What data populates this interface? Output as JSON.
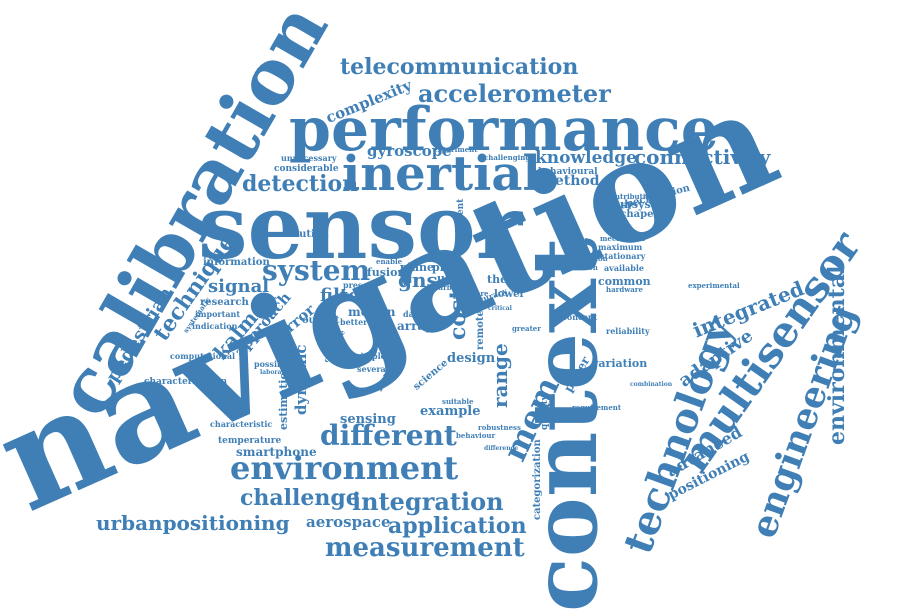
{
  "colors": {
    "word": "#3f7fb6",
    "background": "#ffffff"
  },
  "words": [
    {
      "text": "navigation",
      "orientation": "rotated"
    },
    {
      "text": "sensor",
      "orientation": "horizontal"
    },
    {
      "text": "calibration",
      "orientation": "rotated"
    },
    {
      "text": "context",
      "orientation": "vertical"
    },
    {
      "text": "performance",
      "orientation": "horizontal"
    },
    {
      "text": "inertial",
      "orientation": "horizontal"
    },
    {
      "text": "technology",
      "orientation": "rotated"
    },
    {
      "text": "multisensor",
      "orientation": "rotated"
    },
    {
      "text": "engineering",
      "orientation": "rotated"
    },
    {
      "text": "environment",
      "orientation": "horizontal"
    },
    {
      "text": "different",
      "orientation": "horizontal"
    },
    {
      "text": "telecommunication",
      "orientation": "horizontal"
    },
    {
      "text": "accelerometer",
      "orientation": "horizontal"
    },
    {
      "text": "connectivity",
      "orientation": "horizontal"
    },
    {
      "text": "integration",
      "orientation": "horizontal"
    },
    {
      "text": "measurement",
      "orientation": "horizontal"
    },
    {
      "text": "application",
      "orientation": "horizontal"
    },
    {
      "text": "challenge",
      "orientation": "horizontal"
    },
    {
      "text": "urbanpositioning",
      "orientation": "horizontal"
    },
    {
      "text": "aerospace",
      "orientation": "horizontal"
    },
    {
      "text": "environmental",
      "orientation": "vertical"
    },
    {
      "text": "system",
      "orientation": "horizontal"
    },
    {
      "text": "detection",
      "orientation": "horizontal"
    },
    {
      "text": "knowledge",
      "orientation": "horizontal"
    },
    {
      "text": "method",
      "orientation": "horizontal"
    },
    {
      "text": "gyroscope",
      "orientation": "horizontal"
    },
    {
      "text": "complexity",
      "orientation": "rotated"
    },
    {
      "text": "technique",
      "orientation": "rotated"
    },
    {
      "text": "pedestrian",
      "orientation": "rotated"
    },
    {
      "text": "kalman",
      "orientation": "rotated"
    },
    {
      "text": "integrated",
      "orientation": "rotated"
    },
    {
      "text": "adaptive",
      "orientation": "rotated"
    },
    {
      "text": "advanced",
      "orientation": "rotated"
    },
    {
      "text": "positioning",
      "orientation": "rotated"
    },
    {
      "text": "mem",
      "orientation": "rotated"
    },
    {
      "text": "cost",
      "orientation": "vertical"
    },
    {
      "text": "range",
      "orientation": "vertical"
    },
    {
      "text": "gns",
      "orientation": "horizontal"
    },
    {
      "text": "filter",
      "orientation": "horizontal"
    },
    {
      "text": "signal",
      "orientation": "horizontal"
    },
    {
      "text": "approach",
      "orientation": "rotated"
    },
    {
      "text": "error",
      "orientation": "rotated"
    },
    {
      "text": "dynamic",
      "orientation": "vertical"
    },
    {
      "text": "estimation",
      "orientation": "vertical"
    },
    {
      "text": "sensing",
      "orientation": "horizontal"
    },
    {
      "text": "smartphone",
      "orientation": "horizontal"
    },
    {
      "text": "example",
      "orientation": "horizontal"
    },
    {
      "text": "design",
      "orientation": "horizontal"
    },
    {
      "text": "variation",
      "orientation": "horizontal"
    },
    {
      "text": "common",
      "orientation": "horizontal"
    },
    {
      "text": "paper",
      "orientation": "rotated"
    },
    {
      "text": "science",
      "orientation": "rotated"
    },
    {
      "text": "motion",
      "orientation": "horizontal"
    },
    {
      "text": "array",
      "orientation": "horizontal"
    },
    {
      "text": "plane",
      "orientation": "horizontal"
    },
    {
      "text": "proc",
      "orientation": "horizontal"
    },
    {
      "text": "user",
      "orientation": "horizontal"
    },
    {
      "text": "fusion",
      "orientation": "horizontal"
    },
    {
      "text": "output",
      "orientation": "horizontal"
    },
    {
      "text": "solution",
      "orientation": "horizontal"
    },
    {
      "text": "information",
      "orientation": "horizontal"
    },
    {
      "text": "research",
      "orientation": "horizontal"
    },
    {
      "text": "thesis",
      "orientation": "horizontal"
    },
    {
      "text": "lower",
      "orientation": "horizontal"
    },
    {
      "text": "subsystem",
      "orientation": "horizontal"
    },
    {
      "text": "lachapelle",
      "orientation": "horizontal"
    },
    {
      "text": "specification",
      "orientation": "rotated"
    },
    {
      "text": "behavioural",
      "orientation": "horizontal"
    },
    {
      "text": "considerable",
      "orientation": "horizontal"
    },
    {
      "text": "unnecessary",
      "orientation": "horizontal"
    },
    {
      "text": "temperature",
      "orientation": "horizontal"
    },
    {
      "text": "characterization",
      "orientation": "horizontal"
    },
    {
      "text": "characteristic",
      "orientation": "horizontal"
    },
    {
      "text": "important",
      "orientation": "horizontal"
    },
    {
      "text": "indication",
      "orientation": "horizontal"
    },
    {
      "text": "computational",
      "orientation": "horizontal"
    },
    {
      "text": "possible",
      "orientation": "horizontal"
    },
    {
      "text": "maximum",
      "orientation": "horizontal"
    },
    {
      "text": "mechanical",
      "orientation": "horizontal"
    },
    {
      "text": "stationary",
      "orientation": "horizontal"
    },
    {
      "text": "available",
      "orientation": "horizontal"
    },
    {
      "text": "hardware",
      "orientation": "horizontal"
    },
    {
      "text": "reliability",
      "orientation": "horizontal"
    },
    {
      "text": "concept",
      "orientation": "horizontal"
    },
    {
      "text": "greater",
      "orientation": "horizontal"
    },
    {
      "text": "experimental",
      "orientation": "horizontal"
    },
    {
      "text": "requirement",
      "orientation": "horizontal"
    },
    {
      "text": "categorization",
      "orientation": "vertical"
    },
    {
      "text": "quality",
      "orientation": "vertical"
    },
    {
      "text": "dependent",
      "orientation": "vertical"
    },
    {
      "text": "generation",
      "orientation": "horizontal"
    },
    {
      "text": "location",
      "orientation": "horizontal"
    },
    {
      "text": "several",
      "orientation": "horizontal"
    },
    {
      "text": "simple",
      "orientation": "horizontal"
    },
    {
      "text": "better",
      "orientation": "horizontal"
    },
    {
      "text": "data",
      "orientation": "horizontal"
    },
    {
      "text": "enable",
      "orientation": "horizontal"
    },
    {
      "text": "urban",
      "orientation": "horizontal"
    },
    {
      "text": "present",
      "orientation": "horizontal"
    },
    {
      "text": "vehicle",
      "orientation": "horizontal"
    },
    {
      "text": "limit",
      "orientation": "vertical"
    },
    {
      "text": "remote",
      "orientation": "vertical"
    },
    {
      "text": "suitable",
      "orientation": "horizontal"
    },
    {
      "text": "feature",
      "orientation": "horizontal"
    },
    {
      "text": "accuracy",
      "orientation": "rotated"
    },
    {
      "text": "challenging",
      "orientation": "horizontal"
    },
    {
      "text": "experiment",
      "orientation": "horizontal"
    },
    {
      "text": "contribution",
      "orientation": "horizontal"
    },
    {
      "text": "behaviour",
      "orientation": "horizontal"
    },
    {
      "text": "robustness",
      "orientation": "horizontal"
    },
    {
      "text": "difference",
      "orientation": "horizontal"
    },
    {
      "text": "critical",
      "orientation": "horizontal"
    },
    {
      "text": "indoor",
      "orientation": "rotated"
    },
    {
      "text": "combination",
      "orientation": "horizontal"
    },
    {
      "text": "systematic",
      "orientation": "rotated"
    },
    {
      "text": "laboratory",
      "orientation": "horizontal"
    },
    {
      "text": "cognitive",
      "orientation": "rotated"
    }
  ]
}
